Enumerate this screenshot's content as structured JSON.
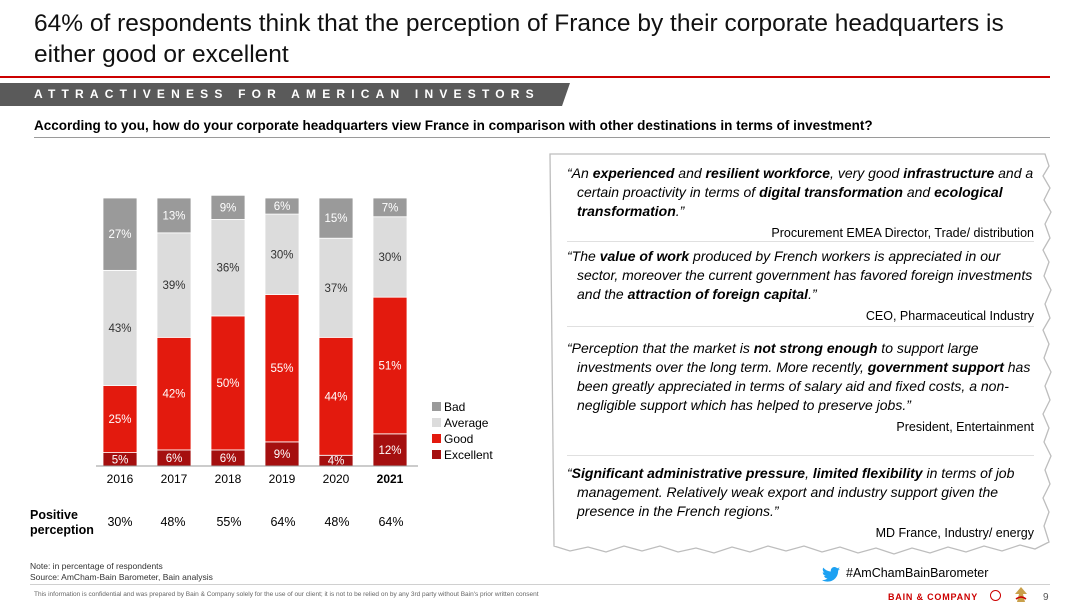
{
  "title": "64% of respondents think that the perception of France by their corporate headquarters is either good or excellent",
  "banner": "ATTRACTIVENESS FOR AMERICAN INVESTORS",
  "question": "According to you, how do your corporate headquarters view France in comparison with other destinations in terms of investment?",
  "colors": {
    "excellent": "#a50f0f",
    "good": "#e31a0e",
    "average": "#dcdcdc",
    "bad": "#9a9a9a",
    "accent": "#cc0000"
  },
  "chart_data": {
    "type": "bar",
    "stacked": true,
    "categories": [
      "2016",
      "2017",
      "2018",
      "2019",
      "2020",
      "2021"
    ],
    "highlight_category": "2021",
    "ylim": [
      0,
      100
    ],
    "series": [
      {
        "name": "Excellent",
        "values": [
          5,
          6,
          6,
          9,
          4,
          12
        ],
        "labels": [
          "5%",
          "6%",
          "6%",
          "9%",
          "4%",
          "12%"
        ]
      },
      {
        "name": "Good",
        "values": [
          25,
          42,
          50,
          55,
          44,
          51
        ],
        "labels": [
          "25%",
          "42%",
          "50%",
          "55%",
          "44%",
          "51%"
        ]
      },
      {
        "name": "Average",
        "values": [
          43,
          39,
          36,
          30,
          37,
          30
        ],
        "labels": [
          "43%",
          "39%",
          "36%",
          "30%",
          "37%",
          "30%"
        ]
      },
      {
        "name": "Bad",
        "values": [
          27,
          13,
          9,
          6,
          15,
          7
        ],
        "labels": [
          "27%",
          "13%",
          "9%",
          "6%",
          "15%",
          "7%"
        ]
      }
    ],
    "legend": [
      "Bad",
      "Average",
      "Good",
      "Excellent"
    ],
    "legend_position": "right"
  },
  "positive_perception": {
    "label_line1": "Positive",
    "label_line2": "perception",
    "values": [
      "30%",
      "48%",
      "55%",
      "64%",
      "48%",
      "64%"
    ]
  },
  "quotes": [
    {
      "segments": [
        {
          "t": "“An ",
          "b": false
        },
        {
          "t": "experienced",
          "b": true
        },
        {
          "t": " and ",
          "b": false
        },
        {
          "t": "resilient workforce",
          "b": true
        },
        {
          "t": ", very good ",
          "b": false
        },
        {
          "t": "infrastructure",
          "b": true
        },
        {
          "t": " and a certain proactivity in terms of ",
          "b": false
        },
        {
          "t": "digital transformation",
          "b": true
        },
        {
          "t": " and ",
          "b": false
        },
        {
          "t": "ecological transformation",
          "b": true
        },
        {
          "t": ".”",
          "b": false
        }
      ],
      "attribution": "Procurement EMEA Director, Trade/ distribution"
    },
    {
      "segments": [
        {
          "t": "“The ",
          "b": false
        },
        {
          "t": "value of work",
          "b": true
        },
        {
          "t": " produced by French workers is appreciated in our sector, moreover the current government has favored foreign investments and the ",
          "b": false
        },
        {
          "t": "attraction of foreign capital",
          "b": true
        },
        {
          "t": ".”",
          "b": false
        }
      ],
      "attribution": "CEO, Pharmaceutical Industry"
    },
    {
      "segments": [
        {
          "t": "“Perception that the market is ",
          "b": false
        },
        {
          "t": "not strong enough",
          "b": true
        },
        {
          "t": " to support large investments over the long term. More recently, ",
          "b": false
        },
        {
          "t": "government support",
          "b": true
        },
        {
          "t": " has been greatly appreciated in terms of salary aid and fixed costs, a non-negligible support which has helped to preserve jobs.”",
          "b": false
        }
      ],
      "attribution": "President, Entertainment"
    },
    {
      "segments": [
        {
          "t": "“",
          "b": false
        },
        {
          "t": "Significant administrative pressure",
          "b": true
        },
        {
          "t": ", ",
          "b": false
        },
        {
          "t": "limited flexibility",
          "b": true
        },
        {
          "t": " in terms of job management. Relatively weak export and industry support given the presence in the French regions.”",
          "b": false
        }
      ],
      "attribution": "MD France, Industry/ energy"
    }
  ],
  "note_line1": "Note: in percentage of respondents",
  "note_line2": "Source: AmCham-Bain Barometer, Bain analysis",
  "hashtag": "#AmChamBainBarometer",
  "disclaimer": "This information is confidential and was prepared by Bain & Company solely for the use of our client; it is not to be relied on by any 3rd party without Bain's prior written consent",
  "brand": "BAIN & COMPANY",
  "page_number": "9",
  "icons": {
    "social": "twitter-bird-icon",
    "brand_mark": "bain-logo-icon",
    "seal": "amcham-seal-icon"
  }
}
